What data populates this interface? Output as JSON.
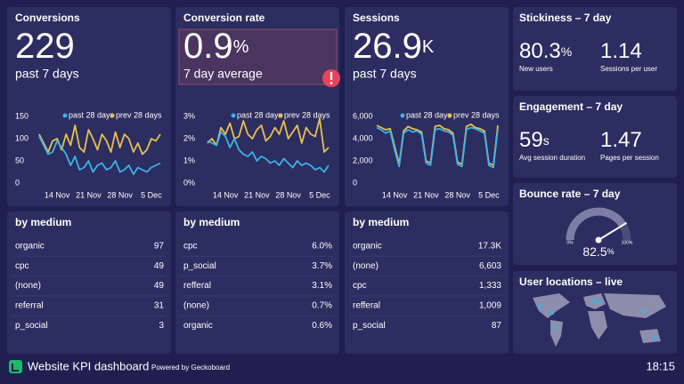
{
  "kpis": [
    {
      "title": "Conversions",
      "value": 229,
      "caption": "past 7 days",
      "chart": {
        "type": "line",
        "categories": [
          null,
          null,
          null,
          null,
          "14 Nov",
          null,
          null,
          null,
          null,
          null,
          null,
          "21 Nov",
          null,
          null,
          null,
          null,
          null,
          null,
          "28 Nov",
          null,
          null,
          null,
          null,
          null,
          null,
          "5 Dec",
          null,
          null
        ],
        "series": [
          {
            "name": "past 28 days",
            "color": "#3db2ea",
            "values": [
              105,
              85,
              65,
              70,
              95,
              80,
              65,
              40,
              60,
              30,
              35,
              50,
              25,
              40,
              45,
              30,
              35,
              50,
              25,
              30,
              40,
              20,
              35,
              30,
              25,
              35,
              40,
              45
            ]
          },
          {
            "name": "prev 28 days",
            "color": "#e6c04f",
            "values": [
              110,
              90,
              70,
              95,
              100,
              75,
              110,
              85,
              130,
              80,
              70,
              120,
              100,
              75,
              110,
              95,
              70,
              115,
              80,
              110,
              100,
              70,
              90,
              65,
              75,
              100,
              95,
              110
            ]
          }
        ],
        "ylim": [
          0,
          150
        ],
        "yticks": [
          0,
          50,
          100,
          150
        ],
        "grid": false
      },
      "table": {
        "title": "by medium",
        "rows": [
          [
            "organic",
            "97"
          ],
          [
            "cpc",
            "49"
          ],
          [
            "(none)",
            "49"
          ],
          [
            "referral",
            "31"
          ],
          [
            "p_social",
            "3"
          ]
        ]
      }
    },
    {
      "title": "Conversion rate",
      "value": 0.9,
      "unit": "%",
      "caption": "7 day average",
      "chart": {
        "type": "line",
        "categories": [
          null,
          null,
          null,
          null,
          "14 Nov",
          null,
          null,
          null,
          null,
          null,
          null,
          "21 Nov",
          null,
          null,
          null,
          null,
          null,
          null,
          "28 Nov",
          null,
          null,
          null,
          null,
          null,
          null,
          "5 Dec",
          null,
          null
        ],
        "series": [
          {
            "name": "past 28 days",
            "color": "#3db2ea",
            "values": [
              1.9,
              1.8,
              1.7,
              2.3,
              2.1,
              1.6,
              2.0,
              1.5,
              1.3,
              1.2,
              1.4,
              1.0,
              1.2,
              1.1,
              0.9,
              1.0,
              0.8,
              1.1,
              0.9,
              0.7,
              1.0,
              0.8,
              0.9,
              0.8,
              0.6,
              0.7,
              0.5,
              0.8
            ]
          },
          {
            "name": "prev 28 days",
            "color": "#e6c04f",
            "values": [
              1.8,
              2.0,
              1.7,
              2.5,
              2.2,
              2.7,
              2.0,
              2.1,
              2.8,
              2.2,
              2.0,
              2.4,
              2.6,
              1.9,
              2.1,
              2.5,
              2.2,
              2.8,
              2.0,
              2.3,
              2.6,
              1.8,
              2.5,
              2.2,
              2.1,
              2.9,
              1.4,
              1.6
            ]
          }
        ],
        "ylim": [
          0,
          3
        ],
        "yticks": [
          {
            "value": 0,
            "label": "0%"
          },
          {
            "value": 1,
            "label": "1%"
          },
          {
            "value": 2,
            "label": "2%"
          },
          {
            "value": 3,
            "label": "3%"
          }
        ],
        "grid": false
      },
      "table": {
        "title": "by medium",
        "rows": [
          [
            "cpc",
            "6.0%"
          ],
          [
            "p_social",
            "3.7%"
          ],
          [
            "refferal",
            "3.1%"
          ],
          [
            "(none)",
            "0.7%"
          ],
          [
            "organic",
            "0.6%"
          ]
        ]
      }
    },
    {
      "title": "Sessions",
      "value": 26.9,
      "unit": "K",
      "caption": "past 7 days",
      "chart": {
        "type": "line",
        "categories": [
          null,
          null,
          null,
          null,
          "14 Nov",
          null,
          null,
          null,
          null,
          null,
          null,
          "21 Nov",
          null,
          null,
          null,
          null,
          null,
          null,
          "28 Nov",
          null,
          null,
          null,
          null,
          null,
          null,
          "5 Dec",
          null,
          null
        ],
        "series": [
          {
            "name": "past 28 days",
            "color": "#3db2ea",
            "values": [
              5000,
              4800,
              4500,
              4700,
              3000,
              1500,
              4500,
              4800,
              4600,
              4700,
              4400,
              1800,
              1600,
              4800,
              4900,
              4700,
              4600,
              4300,
              1700,
              1500,
              4800,
              5000,
              4900,
              4700,
              4500,
              1600,
              1400,
              4900
            ]
          },
          {
            "name": "prev 28 days",
            "color": "#e6c04f",
            "values": [
              5200,
              5000,
              4800,
              4900,
              3300,
              1700,
              4700,
              5100,
              4900,
              4800,
              4600,
              2000,
              1800,
              5100,
              5200,
              4900,
              4800,
              4500,
              1900,
              1700,
              5100,
              5300,
              5000,
              4900,
              4700,
              1800,
              1600,
              5200
            ]
          }
        ],
        "ylim": [
          0,
          6000
        ],
        "yticks": [
          0,
          {
            "value": 2000,
            "label": "2,000"
          },
          {
            "value": 4000,
            "label": "4,000"
          },
          {
            "value": 6000,
            "label": "6,000"
          }
        ],
        "grid": false
      },
      "table": {
        "title": "by medium",
        "rows": [
          [
            "organic",
            "17.3K"
          ],
          [
            "(none)",
            "6,603"
          ],
          [
            "cpc",
            "1,333"
          ],
          [
            "refferal",
            "1,009"
          ],
          [
            "p_social",
            "87"
          ]
        ]
      }
    }
  ],
  "right": [
    {
      "title": "Stickiness – 7 day",
      "stats": [
        {
          "value": 80.3,
          "unit": "%",
          "caption": "New users"
        },
        {
          "value": 1.14,
          "caption": "Sessions per user"
        }
      ]
    },
    {
      "title": "Engagement – 7 day",
      "stats": [
        {
          "value": 59,
          "unit": "s",
          "caption": "Avg session duration"
        },
        {
          "value": 1.47,
          "caption": "Pages per session"
        }
      ]
    },
    {
      "title": "Bounce rate – 7 day",
      "gauge": {
        "value": 82.5,
        "unit": "%",
        "min": {
          "value": 0,
          "label": "0%"
        },
        "max": {
          "value": 100,
          "label": "100%"
        }
      }
    },
    {
      "title": "User locations – live"
    }
  ],
  "footer": {
    "title": "Website KPI dashboard",
    "powered": "Powered by Geckoboard",
    "time": "18:15"
  }
}
